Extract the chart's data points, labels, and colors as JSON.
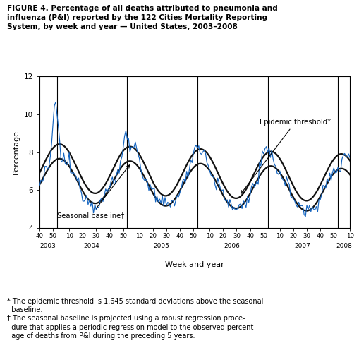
{
  "title_line1": "FIGURE 4. Percentage of all deaths attributed to pneumonia and",
  "title_line2": "influenza (P&I) reported by the 122 Cities Mortality Reporting",
  "title_line3": "System, by week and year — United States, 2003–2008",
  "xlabel": "Week and year",
  "ylabel": "Percentage",
  "ylim": [
    4,
    12
  ],
  "yticks": [
    4,
    6,
    8,
    10,
    12
  ],
  "pi_color": "#1565c0",
  "baseline_color": "#111111",
  "threshold_color": "#111111",
  "epidemic_label": "Epidemic threshold*",
  "seasonal_label": "Seasonal baseline†",
  "year_labels": [
    "2003",
    "2004",
    "2005",
    "2006",
    "2007",
    "2008"
  ],
  "footnote": "* The epidemic threshold is 1.645 standard deviations above the seasonal\n  baseline.\n† The seasonal baseline is projected using a robust regression proce-\n  dure that applies a periodic regression model to the observed percent-\n  age of deaths from P&I during the preceding 5 years."
}
